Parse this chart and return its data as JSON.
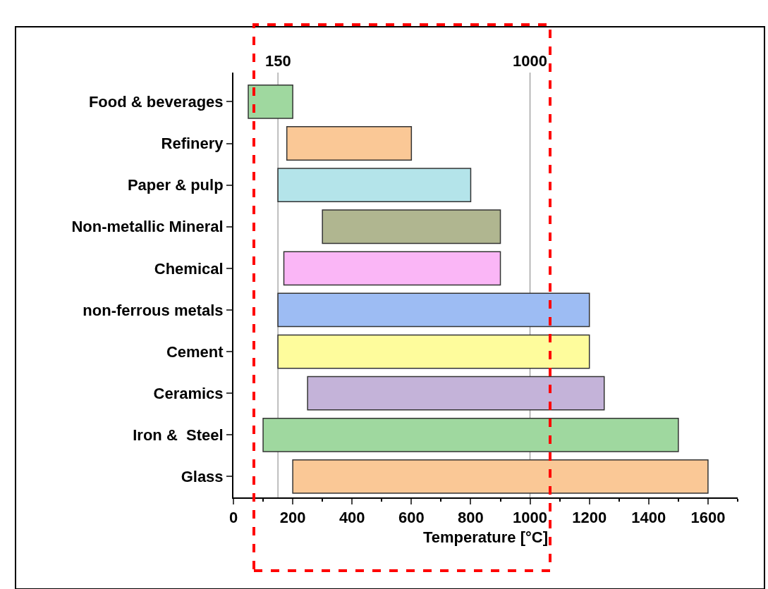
{
  "chart_data": {
    "type": "bar",
    "orientation": "horizontal",
    "xlabel": "Temperature [°C]",
    "categories": [
      "Food & beverages",
      "Refinery",
      "Paper & pulp",
      "Non-metallic Mineral",
      "Chemical",
      "non-ferrous metals",
      "Cement",
      "Ceramics",
      "Iron &  Steel",
      "Glass"
    ],
    "base": [
      50,
      180,
      150,
      300,
      170,
      150,
      150,
      250,
      100,
      200
    ],
    "values": [
      150,
      420,
      650,
      600,
      730,
      1050,
      1050,
      1000,
      1400,
      1400
    ],
    "colors": [
      "#9fd89f",
      "#fac896",
      "#b4e4ea",
      "#b0b690",
      "#fab6f6",
      "#9dbcf3",
      "#fefc9c",
      "#c4b3d9",
      "#9fd89f",
      "#fac896"
    ],
    "xlim": [
      0,
      1700
    ],
    "xticks": [
      0,
      200,
      400,
      600,
      800,
      1000,
      1200,
      1400,
      1600
    ],
    "ref_lines": [
      {
        "axis": "x",
        "value": 150,
        "label": "150",
        "color": "#808080"
      },
      {
        "axis": "x",
        "value": 1000,
        "label": "1000",
        "color": "#808080"
      }
    ],
    "grid": false
  }
}
